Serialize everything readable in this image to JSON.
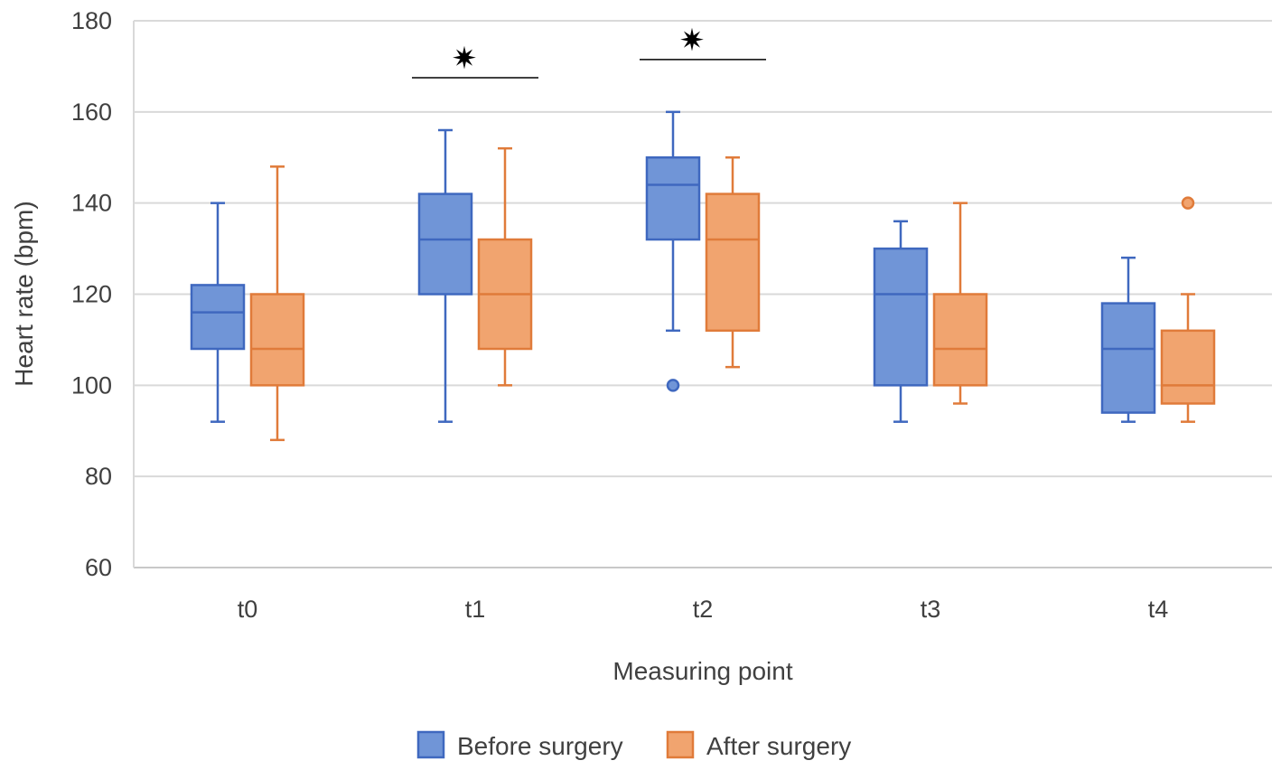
{
  "chart_data": {
    "type": "boxplot",
    "title": "",
    "xlabel": "Measuring point",
    "ylabel": "Heart rate (bpm)",
    "ylim": [
      60,
      180
    ],
    "yticks": [
      60,
      80,
      100,
      120,
      140,
      160,
      180
    ],
    "grid": true,
    "legend_position": "bottom-center",
    "categories": [
      "t0",
      "t1",
      "t2",
      "t3",
      "t4"
    ],
    "series": [
      {
        "name": "Before surgery",
        "fill": "#7095d7",
        "stroke": "#3f68bf",
        "boxes": [
          {
            "min": 92,
            "q1": 108,
            "median": 116,
            "q3": 122,
            "max": 140,
            "outliers": []
          },
          {
            "min": 92,
            "q1": 120,
            "median": 132,
            "q3": 142,
            "max": 156,
            "outliers": []
          },
          {
            "min": 112,
            "q1": 132,
            "median": 144,
            "q3": 150,
            "max": 160,
            "outliers": [
              100
            ]
          },
          {
            "min": 92,
            "q1": 100,
            "median": 120,
            "q3": 130,
            "max": 136,
            "outliers": []
          },
          {
            "min": 92,
            "q1": 94,
            "median": 108,
            "q3": 118,
            "max": 128,
            "outliers": []
          }
        ]
      },
      {
        "name": "After surgery",
        "fill": "#f1a46f",
        "stroke": "#e07b3a",
        "boxes": [
          {
            "min": 88,
            "q1": 100,
            "median": 108,
            "q3": 120,
            "max": 148,
            "outliers": []
          },
          {
            "min": 100,
            "q1": 108,
            "median": 120,
            "q3": 132,
            "max": 152,
            "outliers": []
          },
          {
            "min": 104,
            "q1": 112,
            "median": 132,
            "q3": 142,
            "max": 150,
            "outliers": []
          },
          {
            "min": 96,
            "q1": 100,
            "median": 108,
            "q3": 120,
            "max": 140,
            "outliers": []
          },
          {
            "min": 92,
            "q1": 96,
            "median": 100,
            "q3": 112,
            "max": 120,
            "outliers": [
              140
            ]
          }
        ]
      }
    ],
    "annotations": [
      {
        "category": "t1",
        "symbol": "✷",
        "label": "significant difference"
      },
      {
        "category": "t2",
        "symbol": "✷",
        "label": "significant difference"
      }
    ]
  }
}
